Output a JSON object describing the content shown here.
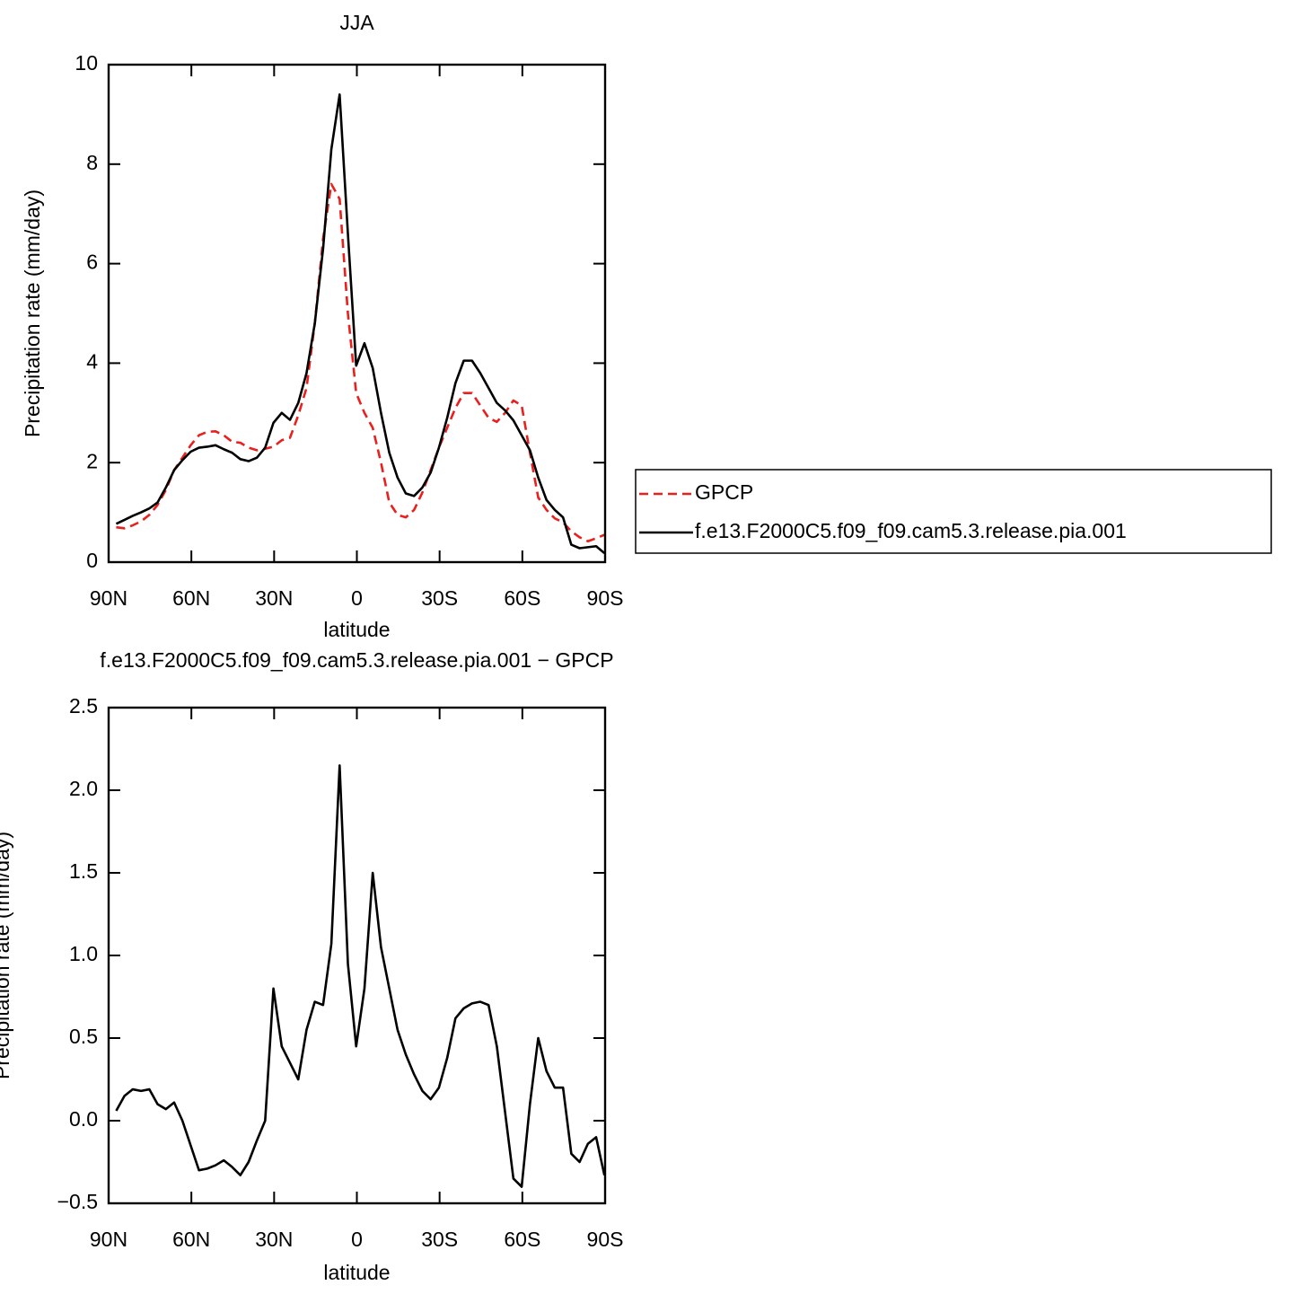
{
  "chart_data": [
    {
      "type": "line",
      "title": "JJA",
      "xlabel": "latitude",
      "ylabel": "Precipitation rate (mm/day)",
      "x": [
        87.25,
        84.25,
        81.25,
        78.25,
        75.25,
        72.25,
        69.25,
        66.25,
        63.25,
        60.25,
        57.25,
        54.25,
        51.25,
        48.25,
        45.25,
        42.25,
        39.25,
        36.25,
        33.25,
        30.25,
        27.25,
        24.25,
        21.25,
        18.25,
        15.25,
        12.25,
        9.25,
        6.25,
        3.25,
        0.25,
        -2.75,
        -5.75,
        -8.75,
        -11.75,
        -14.75,
        -17.75,
        -20.75,
        -23.75,
        -26.75,
        -29.75,
        -32.75,
        -35.75,
        -38.75,
        -41.75,
        -44.75,
        -47.75,
        -50.75,
        -53.75,
        -56.75,
        -59.75,
        -62.75,
        -65.75,
        -68.75,
        -71.75,
        -74.75,
        -77.75,
        -80.75,
        -83.75,
        -86.75,
        -89.75
      ],
      "series": [
        {
          "name": "GPCP",
          "color": "#e8201e",
          "dashed": true,
          "values": [
            0.7,
            0.68,
            0.74,
            0.82,
            0.95,
            1.15,
            1.45,
            1.85,
            2.1,
            2.35,
            2.55,
            2.62,
            2.63,
            2.55,
            2.42,
            2.4,
            2.3,
            2.25,
            2.28,
            2.32,
            2.45,
            2.5,
            2.95,
            3.5,
            4.8,
            6.5,
            7.6,
            7.3,
            5.0,
            3.4,
            3.0,
            2.7,
            2.0,
            1.2,
            0.95,
            0.9,
            1.05,
            1.4,
            1.85,
            2.3,
            2.7,
            3.1,
            3.4,
            3.4,
            3.15,
            2.9,
            2.82,
            3.0,
            3.25,
            3.15,
            2.2,
            1.3,
            1.05,
            0.88,
            0.8,
            0.62,
            0.5,
            0.42,
            0.48,
            0.55
          ]
        },
        {
          "name": "f.e13.F2000C5.f09_f09.cam5.3.release.pia.001",
          "color": "#000000",
          "dashed": false,
          "values": [
            0.77,
            0.85,
            0.93,
            1.0,
            1.08,
            1.2,
            1.5,
            1.85,
            2.05,
            2.22,
            2.3,
            2.32,
            2.35,
            2.27,
            2.2,
            2.07,
            2.03,
            2.1,
            2.3,
            2.8,
            3.0,
            2.86,
            3.2,
            3.8,
            4.8,
            6.3,
            8.3,
            9.4,
            6.6,
            3.95,
            4.4,
            3.9,
            3.0,
            2.2,
            1.7,
            1.38,
            1.33,
            1.5,
            1.8,
            2.3,
            2.9,
            3.6,
            4.05,
            4.05,
            3.8,
            3.5,
            3.2,
            3.05,
            2.85,
            2.55,
            2.25,
            1.7,
            1.25,
            1.05,
            0.9,
            0.35,
            0.28,
            0.3,
            0.32,
            0.18
          ]
        }
      ],
      "xlim": [
        90,
        -90
      ],
      "xticks": [
        {
          "value": 90,
          "label": "90N"
        },
        {
          "value": 60,
          "label": "60N"
        },
        {
          "value": 30,
          "label": "30N"
        },
        0,
        {
          "value": -30,
          "label": "30S"
        },
        {
          "value": -60,
          "label": "60S"
        },
        {
          "value": -90,
          "label": "90S"
        }
      ],
      "ylim": [
        0,
        10
      ],
      "yticks": [
        0,
        2,
        4,
        6,
        8,
        10
      ],
      "legend": "outside-right"
    },
    {
      "type": "line",
      "title": "f.e13.F2000C5.f09_f09.cam5.3.release.pia.001 − GPCP",
      "xlabel": "latitude",
      "ylabel": "Precipitation rate (mm/day)",
      "x": [
        87.25,
        84.25,
        81.25,
        78.25,
        75.25,
        72.25,
        69.25,
        66.25,
        63.25,
        60.25,
        57.25,
        54.25,
        51.25,
        48.25,
        45.25,
        42.25,
        39.25,
        36.25,
        33.25,
        30.25,
        27.25,
        24.25,
        21.25,
        18.25,
        15.25,
        12.25,
        9.25,
        6.25,
        3.25,
        0.25,
        -2.75,
        -5.75,
        -8.75,
        -11.75,
        -14.75,
        -17.75,
        -20.75,
        -23.75,
        -26.75,
        -29.75,
        -32.75,
        -35.75,
        -38.75,
        -41.75,
        -44.75,
        -47.75,
        -50.75,
        -53.75,
        -56.75,
        -59.75,
        -62.75,
        -65.75,
        -68.75,
        -71.75,
        -74.75,
        -77.75,
        -80.75,
        -83.75,
        -86.75,
        -89.75
      ],
      "series": [
        {
          "color": "#000000",
          "dashed": false,
          "values": [
            0.06,
            0.15,
            0.19,
            0.18,
            0.19,
            0.1,
            0.07,
            0.11,
            0.0,
            -0.15,
            -0.3,
            -0.29,
            -0.27,
            -0.24,
            -0.28,
            -0.33,
            -0.25,
            -0.12,
            0.0,
            0.8,
            0.45,
            0.35,
            0.25,
            0.55,
            0.72,
            0.7,
            1.07,
            2.15,
            0.95,
            0.45,
            0.8,
            1.5,
            1.05,
            0.8,
            0.55,
            0.4,
            0.28,
            0.18,
            0.13,
            0.2,
            0.38,
            0.62,
            0.68,
            0.71,
            0.72,
            0.7,
            0.45,
            0.05,
            -0.35,
            -0.4,
            0.1,
            0.5,
            0.3,
            0.2,
            0.2,
            -0.2,
            -0.25,
            -0.14,
            -0.1,
            -0.33
          ]
        }
      ],
      "xlim": [
        90,
        -90
      ],
      "xticks": [
        {
          "value": 90,
          "label": "90N"
        },
        {
          "value": 60,
          "label": "60N"
        },
        {
          "value": 30,
          "label": "30N"
        },
        0,
        {
          "value": -30,
          "label": "30S"
        },
        {
          "value": -60,
          "label": "60S"
        },
        {
          "value": -90,
          "label": "90S"
        }
      ],
      "ylim": [
        -0.5,
        2.5
      ],
      "yticks": [
        {
          "value": -0.5,
          "label": "−0.5"
        },
        {
          "value": 0,
          "label": "0.0"
        },
        0.5,
        {
          "value": 1,
          "label": "1.0"
        },
        1.5,
        {
          "value": 2,
          "label": "2.0"
        },
        2.5
      ]
    }
  ]
}
